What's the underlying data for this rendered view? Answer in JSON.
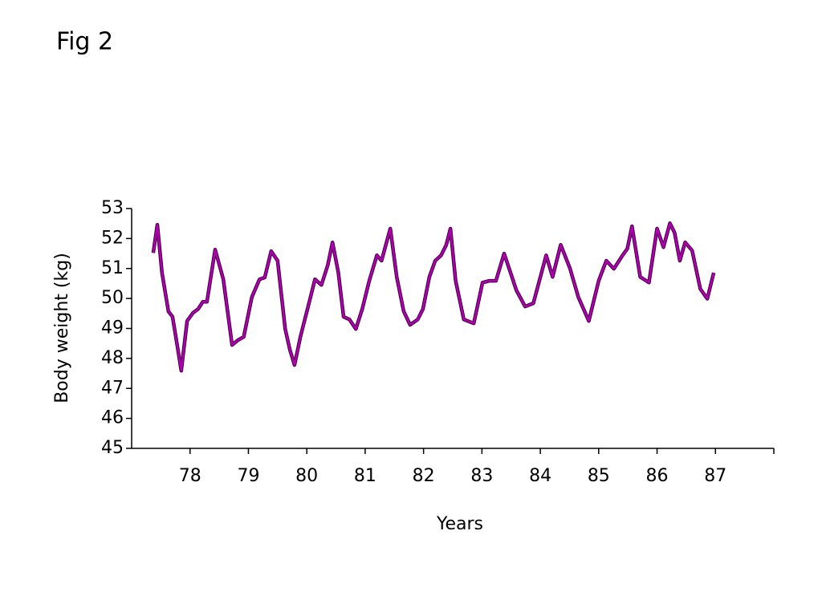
{
  "chart_data": {
    "type": "line",
    "title": "Fig 2",
    "x_label": "Years",
    "y_label": "Body weight (kg)",
    "color": "#b000b0",
    "x": [
      77.37,
      77.44,
      77.52,
      77.63,
      77.7,
      77.78,
      77.85,
      77.95,
      78.05,
      78.14,
      78.22,
      78.29,
      78.43,
      78.57,
      78.72,
      78.82,
      78.92,
      79.06,
      79.19,
      79.28,
      79.39,
      79.5,
      79.63,
      79.71,
      79.79,
      79.89,
      80.03,
      80.14,
      80.25,
      80.36,
      80.44,
      80.54,
      80.63,
      80.73,
      80.84,
      80.95,
      81.07,
      81.2,
      81.28,
      81.43,
      81.54,
      81.66,
      81.77,
      81.9,
      81.99,
      82.1,
      82.2,
      82.3,
      82.39,
      82.46,
      82.55,
      82.69,
      82.86,
      83.01,
      83.13,
      83.24,
      83.38,
      83.49,
      83.59,
      83.74,
      83.88,
      84.1,
      84.21,
      84.35,
      84.51,
      84.65,
      84.83,
      85.0,
      85.13,
      85.26,
      85.41,
      85.49,
      85.57,
      85.71,
      85.86,
      86.0,
      86.11,
      86.22,
      86.3,
      86.39,
      86.48,
      86.6,
      86.74,
      86.86,
      86.97
    ],
    "values": [
      51.52,
      52.46,
      50.86,
      49.57,
      49.39,
      48.45,
      47.59,
      49.25,
      49.52,
      49.65,
      49.89,
      49.89,
      51.63,
      50.64,
      48.45,
      48.61,
      48.72,
      50.05,
      50.64,
      50.7,
      51.58,
      51.26,
      48.98,
      48.29,
      47.78,
      48.72,
      49.79,
      50.64,
      50.45,
      51.12,
      51.87,
      50.86,
      49.39,
      49.3,
      48.98,
      49.65,
      50.59,
      51.44,
      51.26,
      52.33,
      50.72,
      49.57,
      49.12,
      49.3,
      49.65,
      50.72,
      51.26,
      51.44,
      51.79,
      52.33,
      50.59,
      49.3,
      49.17,
      50.53,
      50.59,
      50.59,
      51.5,
      50.86,
      50.27,
      49.73,
      49.84,
      51.44,
      50.72,
      51.79,
      50.99,
      50.05,
      49.25,
      50.59,
      51.26,
      50.99,
      51.44,
      51.66,
      52.41,
      50.72,
      50.53,
      52.33,
      51.71,
      52.51,
      52.19,
      51.26,
      51.87,
      51.6,
      50.32,
      49.99,
      50.86
    ],
    "xlim": [
      77,
      88
    ],
    "xticks": [
      78,
      79,
      80,
      81,
      82,
      83,
      84,
      85,
      86,
      87
    ],
    "ylim": [
      45,
      53
    ],
    "yticks": [
      45,
      46,
      47,
      48,
      49,
      50,
      51,
      52,
      53
    ]
  }
}
